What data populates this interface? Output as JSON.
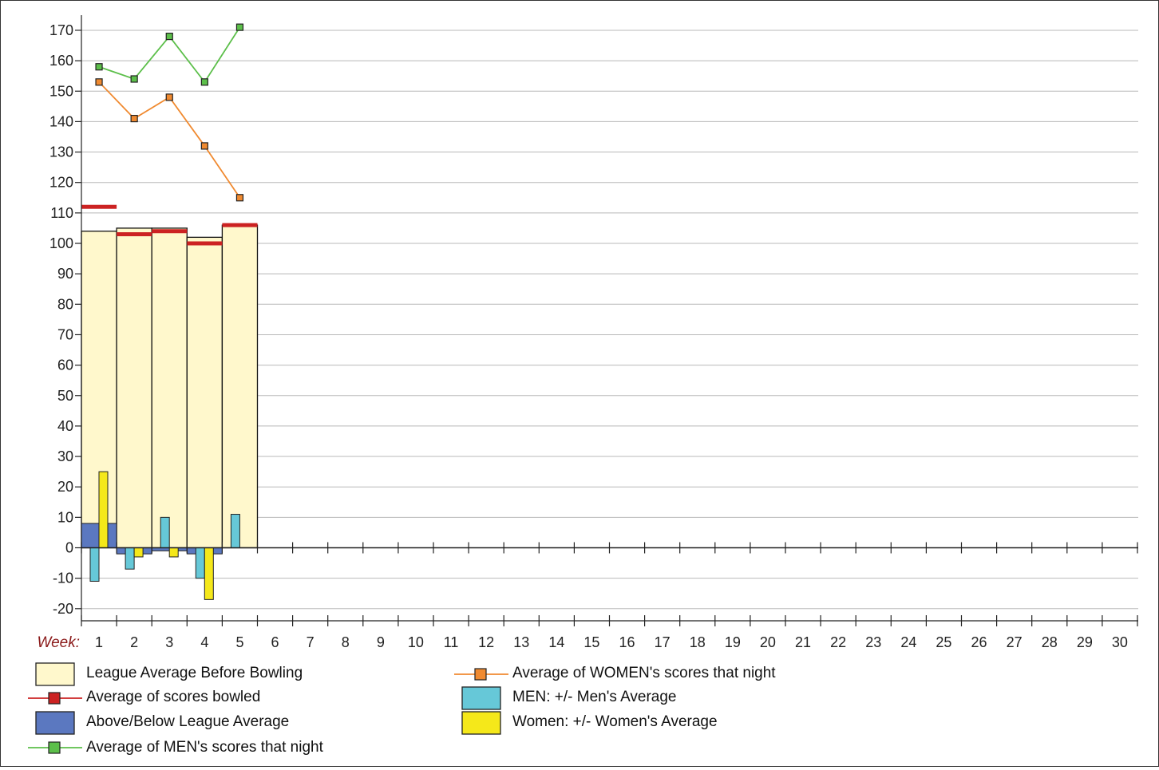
{
  "chart_data": {
    "type": "bar",
    "xlabel": "Week:",
    "x": [
      1,
      2,
      3,
      4,
      5,
      6,
      7,
      8,
      9,
      10,
      11,
      12,
      13,
      14,
      15,
      16,
      17,
      18,
      19,
      20,
      21,
      22,
      23,
      24,
      25,
      26,
      27,
      28,
      29,
      30
    ],
    "ylim": [
      -20,
      170
    ],
    "yticks": [
      -20,
      -10,
      0,
      10,
      20,
      30,
      40,
      50,
      60,
      70,
      80,
      90,
      100,
      110,
      120,
      130,
      140,
      150,
      160,
      170
    ],
    "grid": true,
    "legend_position": "bottom",
    "colors": {
      "league_average": "#fff8cc",
      "scores_bowled": "#cc2222",
      "above_below": "#5b78c0",
      "men_line": "#5cbf4a",
      "women_line": "#f08a30",
      "men_diff": "#66c8d8",
      "women_diff": "#f5e81a",
      "x_label_color": "#8b1a1a"
    },
    "series": [
      {
        "name": "League Average Before Bowling",
        "kind": "bar",
        "x": [
          1,
          2,
          3,
          4,
          5
        ],
        "values": [
          104,
          105,
          105,
          102,
          106
        ]
      },
      {
        "name": "Average of scores bowled",
        "kind": "marker-dash",
        "x": [
          1,
          2,
          3,
          4,
          5
        ],
        "values": [
          112,
          103,
          104,
          100,
          106
        ]
      },
      {
        "name": "Above/Below League Average",
        "kind": "bar",
        "x": [
          1,
          2,
          3,
          4,
          5
        ],
        "values": [
          8,
          -2,
          -1,
          -2,
          0
        ]
      },
      {
        "name": "Average of MEN's scores that night",
        "kind": "line",
        "x": [
          1,
          2,
          3,
          4,
          5
        ],
        "values": [
          158,
          154,
          168,
          153,
          171
        ]
      },
      {
        "name": "Average of WOMEN's scores that night",
        "kind": "line",
        "x": [
          1,
          2,
          3,
          4,
          5
        ],
        "values": [
          153,
          141,
          148,
          132,
          115
        ]
      },
      {
        "name": "MEN: +/- Men's Average",
        "kind": "bar",
        "x": [
          1,
          2,
          3,
          4,
          5
        ],
        "values": [
          -11,
          -7,
          10,
          -10,
          11
        ]
      },
      {
        "name": "Women: +/- Women's Average",
        "kind": "bar",
        "x": [
          1,
          2,
          3,
          4,
          5
        ],
        "values": [
          25,
          -3,
          -3,
          -17,
          0
        ]
      }
    ]
  },
  "legend": [
    {
      "label": "League Average Before Bowling",
      "symbol": "box",
      "color": "#fff8cc"
    },
    {
      "label": "Average of scores bowled",
      "symbol": "line-marker",
      "color": "#cc2222"
    },
    {
      "label": "Above/Below League Average",
      "symbol": "box",
      "color": "#5b78c0"
    },
    {
      "label": "Average of MEN's scores that night",
      "symbol": "line-marker",
      "color": "#5cbf4a"
    },
    {
      "label": "Average of WOMEN's scores that night",
      "symbol": "line-marker",
      "color": "#f08a30"
    },
    {
      "label": "MEN: +/- Men's Average",
      "symbol": "box",
      "color": "#66c8d8"
    },
    {
      "label": "Women: +/- Women's Average",
      "symbol": "box",
      "color": "#f5e81a"
    }
  ]
}
